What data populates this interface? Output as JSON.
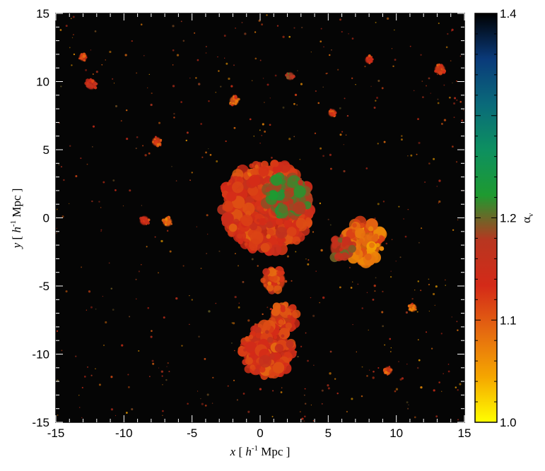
{
  "chart_data": {
    "type": "heatmap",
    "title": "",
    "xlabel": {
      "var": "x",
      "prefix": " [ ",
      "unit_h": "h",
      "sup": "-1",
      "unit": " Mpc ]"
    },
    "ylabel": {
      "var": "y",
      "prefix": " [ ",
      "unit_h": "h",
      "sup": "-1",
      "unit": " Mpc ]"
    },
    "xlim": [
      -15,
      15
    ],
    "ylim": [
      -15,
      15
    ],
    "x_ticks": [
      "-15",
      "-10",
      "-5",
      "0",
      "5",
      "10",
      "15"
    ],
    "y_ticks": [
      "-15",
      "-10",
      "-5",
      "0",
      "5",
      "10",
      "15"
    ],
    "x_tick_values": [
      -15,
      -10,
      -5,
      0,
      5,
      10,
      15
    ],
    "y_tick_values": [
      -15,
      -10,
      -5,
      0,
      5,
      10,
      15
    ],
    "background_color": "#050505",
    "colorbar": {
      "label": "α",
      "label_sub": "ν",
      "range": [
        1.0,
        1.4
      ],
      "ticks": [
        "1.0",
        "1.1",
        "1.2",
        "1.4"
      ],
      "tick_values": [
        1.0,
        1.1,
        1.2,
        1.4
      ],
      "colormap": [
        "#ffff00",
        "#f5a600",
        "#e56a10",
        "#d42a18",
        "#b83620",
        "#1e9a30",
        "#0d9060",
        "#0a6a7a",
        "#0a3a7a",
        "#000000"
      ]
    },
    "clumps": [
      {
        "x": 0.5,
        "y": 0.8,
        "r": 3.3,
        "value": 1.13
      },
      {
        "x": 2.0,
        "y": 1.5,
        "r": 1.6,
        "value": 1.2
      },
      {
        "x": 7.5,
        "y": -1.8,
        "r": 1.5,
        "value": 1.09
      },
      {
        "x": 6.0,
        "y": -2.2,
        "r": 0.9,
        "value": 1.17
      },
      {
        "x": 1.0,
        "y": -4.6,
        "r": 0.9,
        "value": 1.12
      },
      {
        "x": 1.7,
        "y": -7.3,
        "r": 1.0,
        "value": 1.12
      },
      {
        "x": 0.5,
        "y": -9.8,
        "r": 1.9,
        "value": 1.13
      },
      {
        "x": -13.0,
        "y": 11.8,
        "r": 0.3,
        "value": 1.12
      },
      {
        "x": -12.4,
        "y": 9.8,
        "r": 0.4,
        "value": 1.15
      },
      {
        "x": 2.2,
        "y": 10.4,
        "r": 0.3,
        "value": 1.18
      },
      {
        "x": 13.2,
        "y": 10.9,
        "r": 0.4,
        "value": 1.12
      },
      {
        "x": 8.0,
        "y": 11.6,
        "r": 0.3,
        "value": 1.13
      },
      {
        "x": -1.9,
        "y": 8.6,
        "r": 0.35,
        "value": 1.1
      },
      {
        "x": 5.3,
        "y": 7.7,
        "r": 0.3,
        "value": 1.12
      },
      {
        "x": -7.6,
        "y": 5.6,
        "r": 0.35,
        "value": 1.12
      },
      {
        "x": -8.5,
        "y": -0.2,
        "r": 0.35,
        "value": 1.13
      },
      {
        "x": -6.8,
        "y": -0.3,
        "r": 0.35,
        "value": 1.1
      },
      {
        "x": 9.4,
        "y": -11.2,
        "r": 0.3,
        "value": 1.12
      },
      {
        "x": 11.2,
        "y": -6.6,
        "r": 0.3,
        "value": 1.09
      }
    ]
  }
}
